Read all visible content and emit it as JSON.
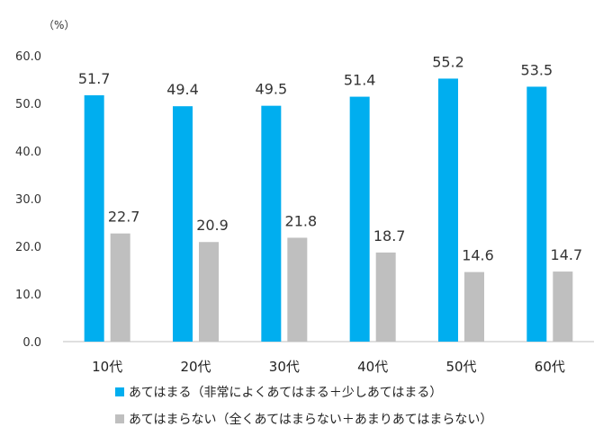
{
  "chart_data": {
    "type": "bar",
    "unit": "（%）",
    "categories": [
      "10代",
      "20代",
      "30代",
      "40代",
      "50代",
      "60代"
    ],
    "series": [
      {
        "name": "あてはまる（非常によくあてはまる＋少しあてはまる）",
        "color": "#00aeef",
        "values": [
          51.7,
          49.4,
          49.5,
          51.4,
          55.2,
          53.5
        ]
      },
      {
        "name": "あてはまらない（全くあてはまらない＋あまりあてはまらない）",
        "color": "#bfbfbf",
        "values": [
          22.7,
          20.9,
          21.8,
          18.7,
          14.6,
          14.7
        ]
      }
    ],
    "ylim": [
      0,
      60
    ],
    "yticks": [
      "0.0",
      "10.0",
      "20.0",
      "30.0",
      "40.0",
      "50.0",
      "60.0"
    ],
    "grid": false,
    "legend_position": "bottom-left"
  }
}
